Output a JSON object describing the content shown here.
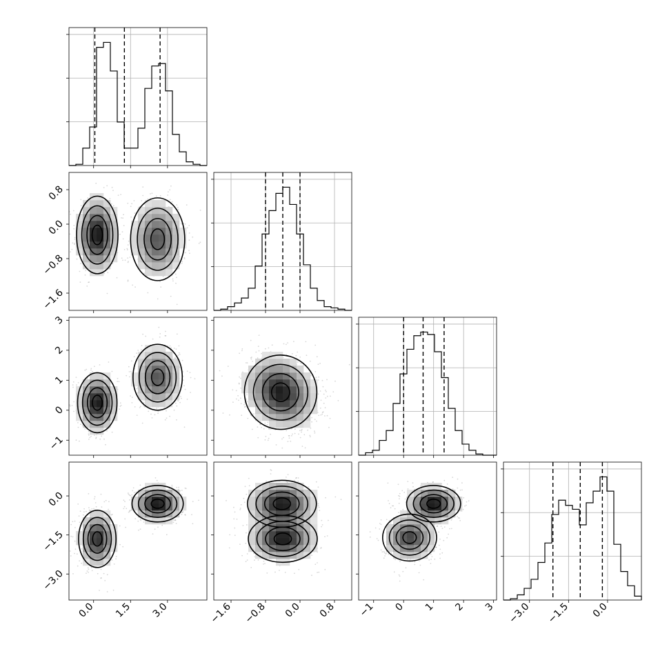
{
  "chart_data": {
    "type": "corner",
    "title": "",
    "parameters": [
      {
        "index": 0,
        "range": [
          -1.0,
          4.6
        ],
        "tick_values": [
          0.0,
          1.5,
          3.0
        ],
        "tick_labels": [
          "0.0",
          "1.5",
          "3.0"
        ],
        "quantiles": [
          0.05,
          1.25,
          2.7
        ],
        "histogram": {
          "bin_edges": [
            -1.0,
            -0.72,
            -0.44,
            -0.16,
            0.12,
            0.4,
            0.68,
            0.96,
            1.24,
            1.52,
            1.8,
            2.08,
            2.36,
            2.64,
            2.92,
            3.2,
            3.48,
            3.76,
            4.04,
            4.32,
            4.6
          ],
          "counts": [
            0.0,
            0.01,
            0.14,
            0.31,
            0.95,
            0.99,
            0.76,
            0.35,
            0.14,
            0.14,
            0.3,
            0.62,
            0.8,
            0.82,
            0.6,
            0.25,
            0.11,
            0.03,
            0.01,
            0.0
          ]
        }
      },
      {
        "index": 1,
        "range": [
          -2.0,
          1.2
        ],
        "tick_values": [
          -1.6,
          -0.8,
          0.0,
          0.8
        ],
        "tick_labels": [
          "−1.6",
          "−0.8",
          "0.0",
          "0.8"
        ],
        "quantiles": [
          -0.8,
          -0.4,
          0.0
        ],
        "histogram": {
          "bin_edges": [
            -2.0,
            -1.84,
            -1.68,
            -1.52,
            -1.36,
            -1.2,
            -1.04,
            -0.88,
            -0.72,
            -0.56,
            -0.4,
            -0.24,
            -0.08,
            0.08,
            0.24,
            0.4,
            0.56,
            0.72,
            0.88,
            1.04,
            1.2
          ],
          "counts": [
            0.0,
            0.01,
            0.03,
            0.06,
            0.1,
            0.18,
            0.36,
            0.62,
            0.81,
            0.95,
            1.0,
            0.86,
            0.62,
            0.37,
            0.18,
            0.08,
            0.03,
            0.02,
            0.01,
            0.0
          ]
        }
      },
      {
        "index": 2,
        "range": [
          -1.5,
          3.1
        ],
        "tick_values": [
          -1,
          0,
          1,
          2,
          3
        ],
        "tick_labels": [
          "−1",
          "0",
          "1",
          "2",
          "3"
        ],
        "quantiles": [
          0.0,
          0.65,
          1.35
        ],
        "histogram": {
          "bin_edges": [
            -1.5,
            -1.27,
            -1.04,
            -0.81,
            -0.58,
            -0.35,
            -0.12,
            0.11,
            0.34,
            0.57,
            0.8,
            1.03,
            1.26,
            1.49,
            1.72,
            1.95,
            2.18,
            2.41,
            2.64,
            2.87,
            3.1
          ],
          "counts": [
            0.0,
            0.02,
            0.04,
            0.12,
            0.2,
            0.42,
            0.66,
            0.86,
            0.97,
            1.0,
            0.98,
            0.84,
            0.63,
            0.38,
            0.2,
            0.09,
            0.04,
            0.01,
            0.0,
            0.0
          ]
        }
      },
      {
        "index": 3,
        "range": [
          -4.0,
          1.3
        ],
        "tick_values": [
          -3.0,
          -1.5,
          0.0
        ],
        "tick_labels": [
          "−3.0",
          "−1.5",
          "0.0"
        ],
        "quantiles": [
          -2.1,
          -1.05,
          -0.2
        ],
        "histogram": {
          "bin_edges": [
            -4.0,
            -3.735,
            -3.47,
            -3.205,
            -2.94,
            -2.675,
            -2.41,
            -2.145,
            -1.88,
            -1.615,
            -1.35,
            -1.085,
            -0.82,
            -0.555,
            -0.29,
            -0.025,
            0.24,
            0.505,
            0.77,
            1.035,
            1.3
          ],
          "counts": [
            0.0,
            0.01,
            0.04,
            0.09,
            0.16,
            0.29,
            0.44,
            0.66,
            0.77,
            0.73,
            0.7,
            0.58,
            0.75,
            0.84,
            0.95,
            0.84,
            0.43,
            0.22,
            0.11,
            0.03
          ]
        }
      }
    ],
    "pairs": [
      {
        "x_param": 0,
        "y_param": 1,
        "modes": [
          {
            "mean": [
              0.15,
              -0.25
            ],
            "sigma": [
              0.42,
              0.45
            ],
            "rho": 0.0,
            "weight": 0.5
          },
          {
            "mean": [
              2.6,
              -0.35
            ],
            "sigma": [
              0.55,
              0.48
            ],
            "rho": 0.0,
            "weight": 0.5
          }
        ]
      },
      {
        "x_param": 0,
        "y_param": 2,
        "modes": [
          {
            "mean": [
              0.15,
              0.25
            ],
            "sigma": [
              0.4,
              0.5
            ],
            "rho": 0.0,
            "weight": 0.5
          },
          {
            "mean": [
              2.6,
              1.1
            ],
            "sigma": [
              0.5,
              0.55
            ],
            "rho": 0.0,
            "weight": 0.5
          }
        ]
      },
      {
        "x_param": 1,
        "y_param": 2,
        "modes": [
          {
            "mean": [
              -0.45,
              0.6
            ],
            "sigma": [
              0.42,
              0.62
            ],
            "rho": -0.2,
            "weight": 1.0
          }
        ]
      },
      {
        "x_param": 0,
        "y_param": 3,
        "modes": [
          {
            "mean": [
              0.15,
              -1.65
            ],
            "sigma": [
              0.38,
              0.55
            ],
            "rho": 0.0,
            "weight": 0.5
          },
          {
            "mean": [
              2.6,
              -0.3
            ],
            "sigma": [
              0.52,
              0.35
            ],
            "rho": 0.0,
            "weight": 0.5
          }
        ]
      },
      {
        "x_param": 1,
        "y_param": 3,
        "modes": [
          {
            "mean": [
              -0.42,
              -0.3
            ],
            "sigma": [
              0.4,
              0.45
            ],
            "rho": 0.0,
            "weight": 0.5
          },
          {
            "mean": [
              -0.4,
              -1.65
            ],
            "sigma": [
              0.4,
              0.45
            ],
            "rho": 0.0,
            "weight": 0.5
          }
        ]
      },
      {
        "x_param": 2,
        "y_param": 3,
        "modes": [
          {
            "mean": [
              1.0,
              -0.3
            ],
            "sigma": [
              0.45,
              0.35
            ],
            "rho": 0.0,
            "weight": 0.5
          },
          {
            "mean": [
              0.2,
              -1.6
            ],
            "sigma": [
              0.45,
              0.45
            ],
            "rho": 0.0,
            "weight": 0.5
          }
        ]
      }
    ],
    "contour_levels_sigma": [
      0.5,
      1.0,
      1.5,
      2.0
    ],
    "grid": true,
    "legend": "none",
    "xlabel": "",
    "ylabel": ""
  }
}
